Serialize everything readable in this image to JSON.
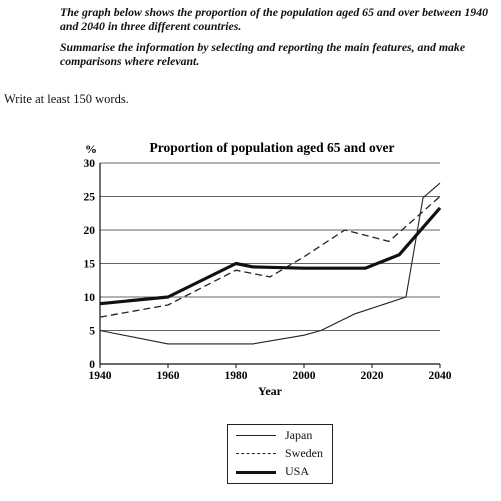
{
  "task": {
    "line1": "The graph below shows the proportion of the population aged 65 and over between 1940 and 2040 in three different countries.",
    "line2": "Summarise the information by selecting and reporting the main features, and make comparisons where relevant."
  },
  "instruction": "Write at least 150 words.",
  "chart_data": {
    "type": "line",
    "title": "Proportion of population aged 65 and over",
    "xlabel": "Year",
    "ylabel": "%",
    "xlim": [
      1940,
      2040
    ],
    "ylim": [
      0,
      30
    ],
    "x_ticks": [
      1940,
      1960,
      1980,
      2000,
      2020,
      2040
    ],
    "y_ticks": [
      0,
      5,
      10,
      15,
      20,
      25,
      30
    ],
    "grid": "horizontal",
    "legend_position": "bottom-center",
    "series": [
      {
        "name": "Japan",
        "style": "thin-solid",
        "color": "#222222",
        "points": [
          [
            1940,
            5
          ],
          [
            1960,
            3
          ],
          [
            1985,
            3
          ],
          [
            2000,
            4.3
          ],
          [
            2005,
            5
          ],
          [
            2015,
            7.5
          ],
          [
            2030,
            10
          ],
          [
            2035,
            24.8
          ],
          [
            2040,
            27
          ]
        ]
      },
      {
        "name": "Sweden",
        "style": "dashed",
        "color": "#222222",
        "points": [
          [
            1940,
            7
          ],
          [
            1960,
            8.8
          ],
          [
            1980,
            14
          ],
          [
            1990,
            13
          ],
          [
            2000,
            16
          ],
          [
            2012,
            20
          ],
          [
            2025,
            18.3
          ],
          [
            2040,
            25
          ]
        ]
      },
      {
        "name": "USA",
        "style": "thick-solid",
        "color": "#111111",
        "points": [
          [
            1940,
            9
          ],
          [
            1960,
            10
          ],
          [
            1980,
            15
          ],
          [
            1985,
            14.5
          ],
          [
            2000,
            14.3
          ],
          [
            2018,
            14.3
          ],
          [
            2028,
            16.3
          ],
          [
            2040,
            23.3
          ]
        ]
      }
    ]
  }
}
